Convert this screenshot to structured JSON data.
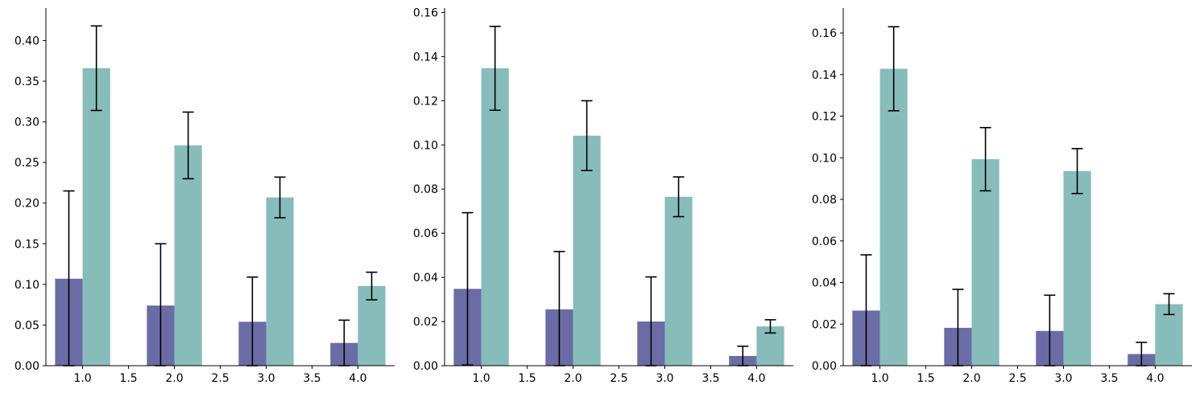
{
  "colors": {
    "series_a": "#6b6ca5",
    "series_b": "#87bcbb",
    "error_bar": "#000000"
  },
  "chart_data": [
    {
      "type": "bar",
      "categories": [
        1,
        2,
        3,
        4
      ],
      "series": [
        {
          "values": [
            0.107,
            0.074,
            0.054,
            0.028
          ],
          "errors": [
            0.108,
            0.076,
            0.055,
            0.028
          ]
        },
        {
          "values": [
            0.366,
            0.271,
            0.207,
            0.098
          ],
          "errors": [
            0.052,
            0.041,
            0.025,
            0.017
          ]
        }
      ],
      "xlim": [
        0.6,
        4.4
      ],
      "ylim": [
        0,
        0.44
      ],
      "xticks": [
        "1.0",
        "1.5",
        "2.0",
        "2.5",
        "3.0",
        "3.5",
        "4.0"
      ],
      "yticks": [
        "0.00",
        "0.05",
        "0.10",
        "0.15",
        "0.20",
        "0.25",
        "0.30",
        "0.35",
        "0.40"
      ],
      "grid": false
    },
    {
      "type": "bar",
      "categories": [
        1,
        2,
        3,
        4
      ],
      "series": [
        {
          "values": [
            0.0348,
            0.0255,
            0.02,
            0.0044
          ],
          "errors": [
            0.0345,
            0.0262,
            0.0202,
            0.0044
          ]
        },
        {
          "values": [
            0.1347,
            0.1042,
            0.0765,
            0.0178
          ],
          "errors": [
            0.019,
            0.0158,
            0.009,
            0.003
          ]
        }
      ],
      "xlim": [
        0.6,
        4.4
      ],
      "ylim": [
        0,
        0.162
      ],
      "xticks": [
        "1.0",
        "1.5",
        "2.0",
        "2.5",
        "3.0",
        "3.5",
        "4.0"
      ],
      "yticks": [
        "0.00",
        "0.02",
        "0.04",
        "0.06",
        "0.08",
        "0.10",
        "0.12",
        "0.14",
        "0.16"
      ],
      "grid": false
    },
    {
      "type": "bar",
      "categories": [
        1,
        2,
        3,
        4
      ],
      "series": [
        {
          "values": [
            0.0265,
            0.0182,
            0.0167,
            0.0056
          ],
          "errors": [
            0.0268,
            0.0185,
            0.0172,
            0.0056
          ]
        },
        {
          "values": [
            0.1428,
            0.0993,
            0.0936,
            0.0296
          ],
          "errors": [
            0.0202,
            0.0152,
            0.0108,
            0.005
          ]
        }
      ],
      "xlim": [
        0.6,
        4.4
      ],
      "ylim": [
        0,
        0.172
      ],
      "xticks": [
        "1.0",
        "1.5",
        "2.0",
        "2.5",
        "3.0",
        "3.5",
        "4.0"
      ],
      "yticks": [
        "0.00",
        "0.02",
        "0.04",
        "0.06",
        "0.08",
        "0.10",
        "0.12",
        "0.14",
        "0.16"
      ],
      "grid": false
    }
  ]
}
